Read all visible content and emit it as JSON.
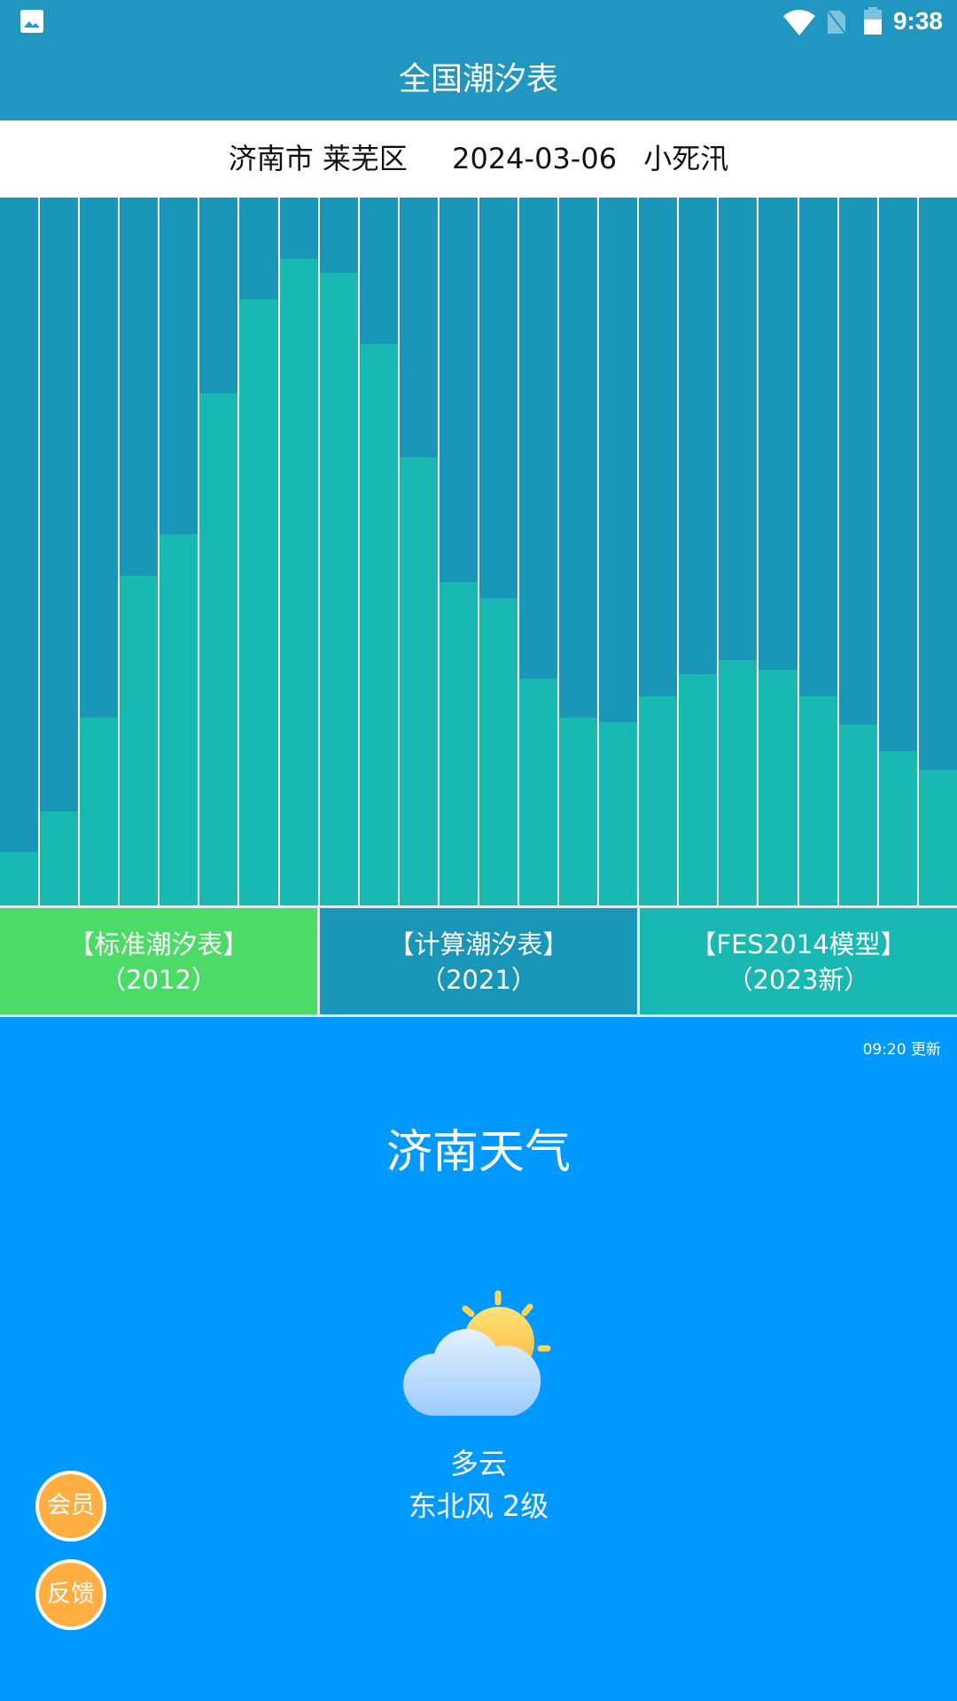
{
  "status_bar": {
    "time": "9:38",
    "icons": [
      "image-icon",
      "wifi-icon",
      "no-sim-icon",
      "battery-icon"
    ]
  },
  "header": {
    "title": "全国潮汐表"
  },
  "info": {
    "location": "济南市 莱芜区",
    "date": "2024-03-06",
    "tide_type": "小死汛"
  },
  "colors": {
    "header": "#2196C1",
    "bar_bg": "#1A96B8",
    "bar_fill": "#1AB8B3",
    "tab_standard": "#4CDB66",
    "tab_calc": "#1A96B8",
    "tab_fes": "#1AB8B3",
    "weather_bg": "#0099FF",
    "fab": "#FFAE42"
  },
  "chart_data": {
    "type": "bar",
    "title": "",
    "xlabel": "",
    "ylabel": "",
    "grid": false,
    "legend": "none",
    "ylim": [
      0,
      1
    ],
    "values": [
      0.075,
      0.133,
      0.265,
      0.465,
      0.525,
      0.724,
      0.856,
      0.914,
      0.894,
      0.793,
      0.633,
      0.457,
      0.434,
      0.321,
      0.265,
      0.259,
      0.296,
      0.327,
      0.347,
      0.333,
      0.296,
      0.255,
      0.218,
      0.192
    ]
  },
  "tabs": [
    {
      "label": "【标准潮汐表】",
      "sub": "（2012）"
    },
    {
      "label": "【计算潮汐表】",
      "sub": "（2021）"
    },
    {
      "label": "【FES2014模型】",
      "sub": "（2023新）"
    }
  ],
  "weather": {
    "updated": "09:20 更新",
    "title": "济南天气",
    "icon": "partly-cloudy-icon",
    "condition": "多云",
    "wind": "东北风 2级"
  },
  "fabs": {
    "member": "会员",
    "feedback": "反馈"
  }
}
